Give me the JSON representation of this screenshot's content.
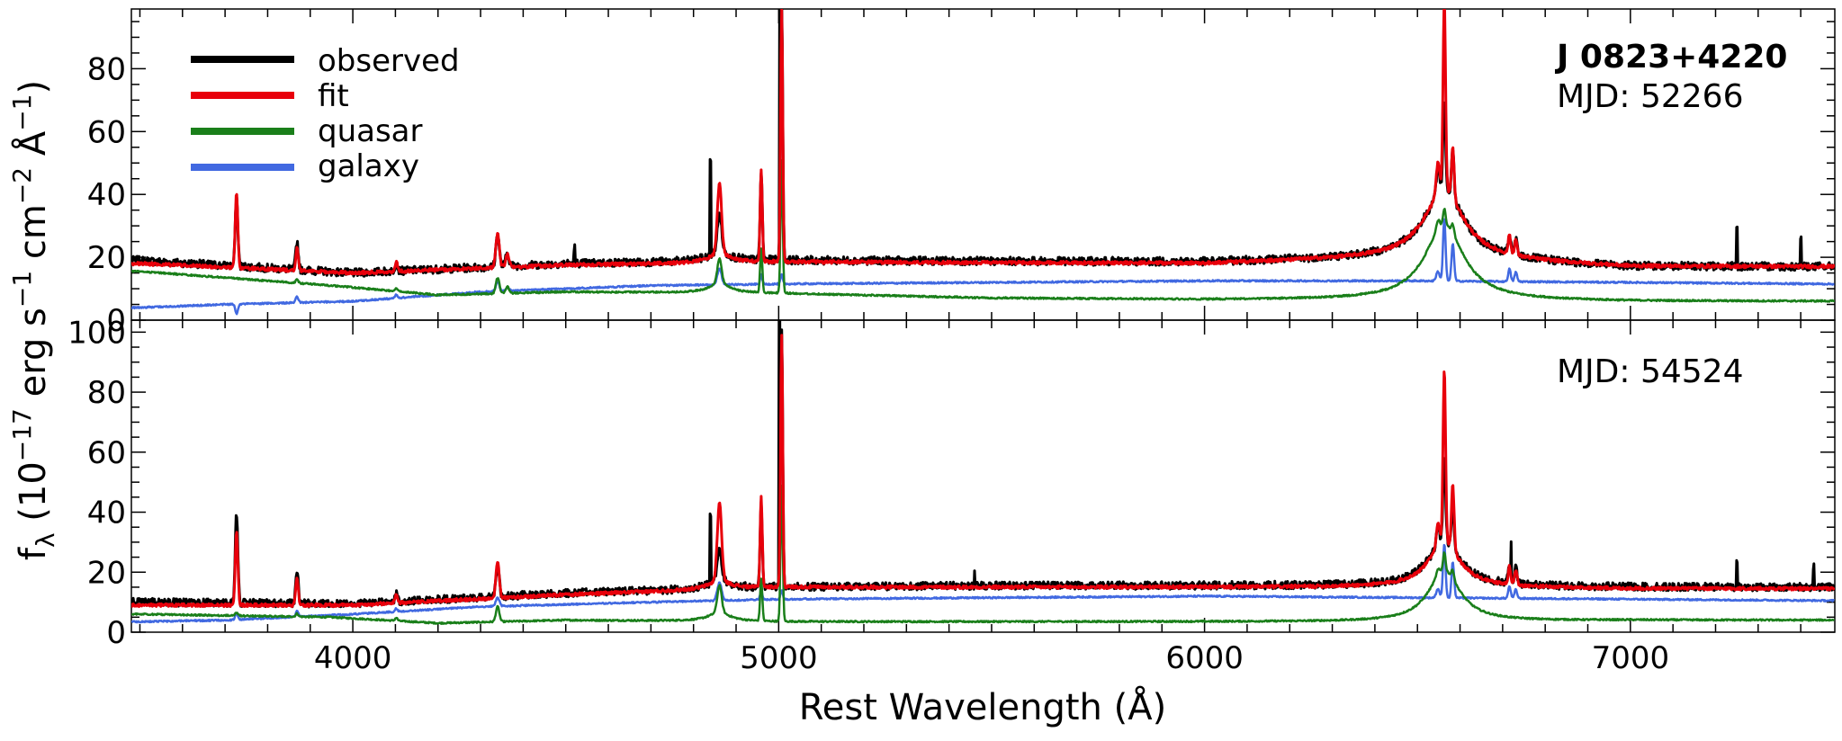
{
  "chart_data": [
    {
      "type": "line",
      "panel": "top",
      "title": "",
      "annotation_title": "J 0823+4220",
      "annotation_mjd": "MJD: 52266",
      "xlim": [
        3480,
        7480
      ],
      "ylim": [
        0,
        99
      ],
      "yticks": [
        0,
        20,
        40,
        60,
        80
      ],
      "legend": {
        "placement": "top-left",
        "entries": [
          {
            "label": "observed",
            "color": "#000000"
          },
          {
            "label": "fit",
            "color": "#e8000b"
          },
          {
            "label": "quasar",
            "color": "#1a7f1a"
          },
          {
            "label": "galaxy",
            "color": "#4169e1"
          }
        ]
      },
      "continuum": {
        "observed": [
          [
            3500,
            19
          ],
          [
            4000,
            15
          ],
          [
            4500,
            18
          ],
          [
            5000,
            19
          ],
          [
            6000,
            18.5
          ],
          [
            6500,
            20
          ],
          [
            7000,
            17
          ],
          [
            7480,
            17
          ]
        ],
        "fit": [
          [
            3500,
            18
          ],
          [
            4000,
            15
          ],
          [
            4500,
            17.5
          ],
          [
            5000,
            18.5
          ],
          [
            6000,
            18
          ],
          [
            6500,
            20
          ],
          [
            7000,
            17
          ],
          [
            7480,
            17
          ]
        ],
        "quasar": [
          [
            3500,
            15.5
          ],
          [
            3950,
            11
          ],
          [
            4200,
            8
          ],
          [
            4500,
            9
          ],
          [
            5000,
            8.5
          ],
          [
            5500,
            7
          ],
          [
            6000,
            6.5
          ],
          [
            6500,
            6.5
          ],
          [
            7000,
            6
          ],
          [
            7480,
            6
          ]
        ],
        "galaxy": [
          [
            3500,
            4
          ],
          [
            3700,
            5
          ],
          [
            4000,
            6
          ],
          [
            4300,
            9
          ],
          [
            4700,
            11
          ],
          [
            5000,
            11.5
          ],
          [
            5500,
            12
          ],
          [
            6000,
            12.5
          ],
          [
            6500,
            12.5
          ],
          [
            7000,
            12
          ],
          [
            7480,
            11.5
          ]
        ]
      },
      "lines": [
        {
          "wl": 3727,
          "w": 3,
          "observed": 22,
          "fit": 24,
          "quasar": 0,
          "galaxy": -3
        },
        {
          "wl": 3869,
          "w": 3,
          "observed": 9,
          "fit": 7,
          "quasar": 1,
          "galaxy": 2
        },
        {
          "wl": 4102,
          "w": 3,
          "observed": 3,
          "fit": 3,
          "quasar": 1,
          "galaxy": 1
        },
        {
          "wl": 4340,
          "w": 4,
          "observed": 10,
          "fit": 11,
          "quasar": 5,
          "galaxy": 3
        },
        {
          "wl": 4363,
          "w": 4,
          "observed": 4,
          "fit": 4,
          "quasar": 2,
          "galaxy": 1
        },
        {
          "wl": 4861,
          "w": 5,
          "observed": 12,
          "fit": 22,
          "quasar": 8,
          "galaxy": 5
        },
        {
          "wl": 4959,
          "w": 2.5,
          "observed": 28,
          "fit": 29,
          "quasar": 14,
          "galaxy": 3
        },
        {
          "wl": 5007,
          "w": 2.5,
          "observed": 81,
          "fit": 80,
          "quasar": 42,
          "galaxy": 3
        },
        {
          "wl": 6548,
          "w": 4,
          "observed": 8,
          "fit": 10,
          "quasar": 3,
          "galaxy": 3
        },
        {
          "wl": 6563,
          "w": 3,
          "observed": 28,
          "fit": 60,
          "quasar": 5,
          "galaxy": 20
        },
        {
          "wl": 6583,
          "w": 3,
          "observed": 16,
          "fit": 16,
          "quasar": 3,
          "galaxy": 12
        },
        {
          "wl": 6716,
          "w": 3,
          "observed": 6,
          "fit": 6,
          "quasar": 0,
          "galaxy": 4
        },
        {
          "wl": 6731,
          "w": 3,
          "observed": 5,
          "fit": 5,
          "quasar": 0,
          "galaxy": 3
        }
      ],
      "broad": {
        "wl": 6563,
        "w": 55,
        "observed": 22,
        "fit": 22,
        "quasar": 24
      },
      "spikes": [
        [
          4840,
          30
        ],
        [
          5003,
          80
        ],
        [
          7250,
          12
        ],
        [
          7400,
          9
        ],
        [
          4520,
          5
        ]
      ]
    },
    {
      "type": "line",
      "panel": "bottom",
      "title": "",
      "annotation_mjd": "MJD: 54524",
      "xlim": [
        3480,
        7480
      ],
      "ylim": [
        0,
        104
      ],
      "yticks": [
        0,
        20,
        40,
        60,
        80,
        100
      ],
      "xticks": [
        4000,
        5000,
        6000,
        7000
      ],
      "xlabel": "Rest Wavelength (Å)",
      "continuum": {
        "observed": [
          [
            3500,
            10
          ],
          [
            4000,
            9.5
          ],
          [
            4500,
            13
          ],
          [
            5000,
            15
          ],
          [
            5500,
            15.5
          ],
          [
            6000,
            15.5
          ],
          [
            6500,
            15.5
          ],
          [
            7000,
            15
          ],
          [
            7480,
            15
          ]
        ],
        "fit": [
          [
            3500,
            9
          ],
          [
            4000,
            9
          ],
          [
            4500,
            12.5
          ],
          [
            5000,
            15
          ],
          [
            5500,
            15
          ],
          [
            6000,
            15
          ],
          [
            6500,
            15
          ],
          [
            7000,
            14.5
          ],
          [
            7480,
            14.5
          ]
        ],
        "quasar": [
          [
            3500,
            6
          ],
          [
            3950,
            5
          ],
          [
            4200,
            3
          ],
          [
            4500,
            4
          ],
          [
            5000,
            3.5
          ],
          [
            5500,
            3.5
          ],
          [
            6000,
            3.5
          ],
          [
            6500,
            3.5
          ],
          [
            7000,
            4
          ],
          [
            7480,
            4
          ]
        ],
        "galaxy": [
          [
            3500,
            3.5
          ],
          [
            3700,
            4
          ],
          [
            4000,
            6
          ],
          [
            4300,
            8.5
          ],
          [
            4700,
            10
          ],
          [
            5000,
            11
          ],
          [
            5500,
            11.5
          ],
          [
            6000,
            12
          ],
          [
            6500,
            11.5
          ],
          [
            7000,
            11
          ],
          [
            7480,
            10.5
          ]
        ]
      },
      "lines": [
        {
          "wl": 3727,
          "w": 3,
          "observed": 30,
          "fit": 25,
          "quasar": 1,
          "galaxy": 2
        },
        {
          "wl": 3869,
          "w": 3,
          "observed": 11,
          "fit": 9,
          "quasar": 1,
          "galaxy": 2
        },
        {
          "wl": 4102,
          "w": 3,
          "observed": 3,
          "fit": 3,
          "quasar": 1,
          "galaxy": 1
        },
        {
          "wl": 4340,
          "w": 4,
          "observed": 10,
          "fit": 12,
          "quasar": 5,
          "galaxy": 3
        },
        {
          "wl": 4861,
          "w": 5,
          "observed": 10,
          "fit": 26,
          "quasar": 9,
          "galaxy": 6
        },
        {
          "wl": 4959,
          "w": 2.5,
          "observed": 28,
          "fit": 30,
          "quasar": 14,
          "galaxy": 3
        },
        {
          "wl": 5007,
          "w": 2.5,
          "observed": 86,
          "fit": 84,
          "quasar": 45,
          "galaxy": 3
        },
        {
          "wl": 6548,
          "w": 4,
          "observed": 6,
          "fit": 8,
          "quasar": 2,
          "galaxy": 3
        },
        {
          "wl": 6563,
          "w": 3,
          "observed": 28,
          "fit": 58,
          "quasar": 6,
          "galaxy": 18
        },
        {
          "wl": 6583,
          "w": 3,
          "observed": 14,
          "fit": 22,
          "quasar": 3,
          "galaxy": 12
        },
        {
          "wl": 6716,
          "w": 3,
          "observed": 6,
          "fit": 6,
          "quasar": 0,
          "galaxy": 4
        },
        {
          "wl": 6731,
          "w": 3,
          "observed": 5,
          "fit": 5,
          "quasar": 0,
          "galaxy": 3
        }
      ],
      "broad": {
        "wl": 6563,
        "w": 45,
        "observed": 15,
        "fit": 15,
        "quasar": 17
      },
      "spikes": [
        [
          4840,
          22
        ],
        [
          5002,
          86
        ],
        [
          5460,
          6
        ],
        [
          6720,
          10
        ],
        [
          7250,
          8
        ],
        [
          7430,
          7
        ]
      ]
    }
  ],
  "shared_ylabel": "f",
  "shared_ylabel_sub": "λ",
  "shared_ylabel_units": " (10",
  "shared_ylabel_exp1": "−17",
  "shared_ylabel_mid1": " erg s",
  "shared_ylabel_exp2": "−1",
  "shared_ylabel_mid2": " cm",
  "shared_ylabel_exp3": "−2",
  "shared_ylabel_mid3": " Å",
  "shared_ylabel_exp4": "−1",
  "shared_ylabel_end": ")"
}
